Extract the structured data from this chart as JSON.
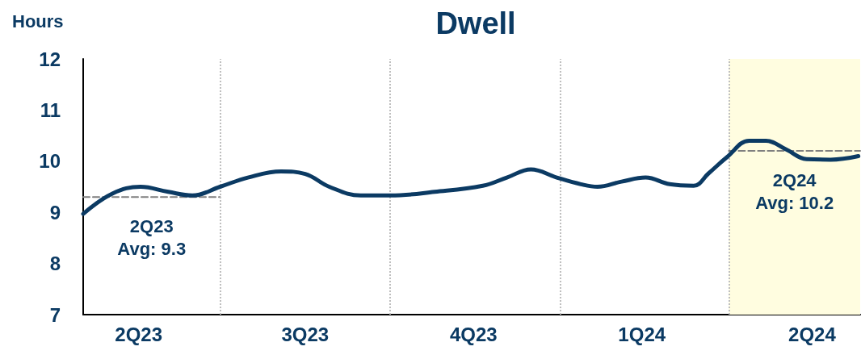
{
  "chart_data": {
    "type": "line",
    "title": "Dwell",
    "ylabel": "Hours",
    "xlim": [
      "2023-04-18",
      "2024-06-11"
    ],
    "ylim": [
      7,
      12
    ],
    "yticks": [
      7,
      8,
      9,
      10,
      11,
      12
    ],
    "xticks": [
      {
        "value": "2023-05-18",
        "label": "2Q23"
      },
      {
        "value": "2023-08-16",
        "label": "3Q23"
      },
      {
        "value": "2023-11-15",
        "label": "4Q23"
      },
      {
        "value": "2024-02-14",
        "label": "1Q24"
      },
      {
        "value": "2024-05-16",
        "label": "2Q24"
      }
    ],
    "grid": false,
    "marker": "none",
    "line_style": "solid",
    "series": [
      {
        "color": "#0b3a63",
        "x": [
          "2023-04-18",
          "2023-05-04",
          "2023-05-19",
          "2023-06-03",
          "2023-06-16",
          "2023-07-01",
          "2023-07-16",
          "2023-08-03",
          "2023-08-16",
          "2023-08-29",
          "2023-09-15",
          "2023-10-01",
          "2023-10-25",
          "2023-11-20",
          "2023-12-03",
          "2023-12-16",
          "2023-12-30",
          "2024-01-12",
          "2024-01-21",
          "2024-02-03",
          "2024-02-16",
          "2024-02-29",
          "2024-03-13",
          "2024-03-21",
          "2024-03-31",
          "2024-04-12",
          "2024-04-21",
          "2024-05-02",
          "2024-05-13",
          "2024-05-26",
          "2024-06-10"
        ],
        "values": [
          8.97,
          9.37,
          9.5,
          9.4,
          9.33,
          9.5,
          9.68,
          9.8,
          9.75,
          9.5,
          9.33,
          9.33,
          9.4,
          9.52,
          9.68,
          9.84,
          9.68,
          9.55,
          9.5,
          9.6,
          9.68,
          9.55,
          9.52,
          9.76,
          10.08,
          10.4,
          10.4,
          10.23,
          10.04,
          10.03,
          10.1
        ]
      },
      {
        "color": "#7f7f7f",
        "line_style": "dashed",
        "x": [
          "2023-04-18",
          "2023-07-01"
        ],
        "values": [
          9.3,
          9.3
        ]
      },
      {
        "color": "#7f7f7f",
        "line_style": "dashed",
        "x": [
          "2024-04-01",
          "2024-06-11"
        ],
        "values": [
          10.2,
          10.2
        ]
      }
    ],
    "ref_lines": [
      {
        "axis": "x",
        "value": "2023-07-01",
        "color": "#bfbfbf",
        "line_style": "dotted"
      },
      {
        "axis": "x",
        "value": "2023-10-01",
        "color": "#bfbfbf",
        "line_style": "dotted"
      },
      {
        "axis": "x",
        "value": "2024-01-01",
        "color": "#bfbfbf",
        "line_style": "dotted"
      },
      {
        "axis": "x",
        "value": "2024-04-01",
        "color": "#bfbfbf",
        "line_style": "dotted"
      }
    ],
    "bands": [
      {
        "axis": "x",
        "from": "2024-04-01",
        "to": "2024-06-11",
        "color": "#fffde0"
      }
    ],
    "annotations": [
      "2Q23\nAvg: 9.3",
      "2Q24\nAvg: 10.2"
    ]
  }
}
